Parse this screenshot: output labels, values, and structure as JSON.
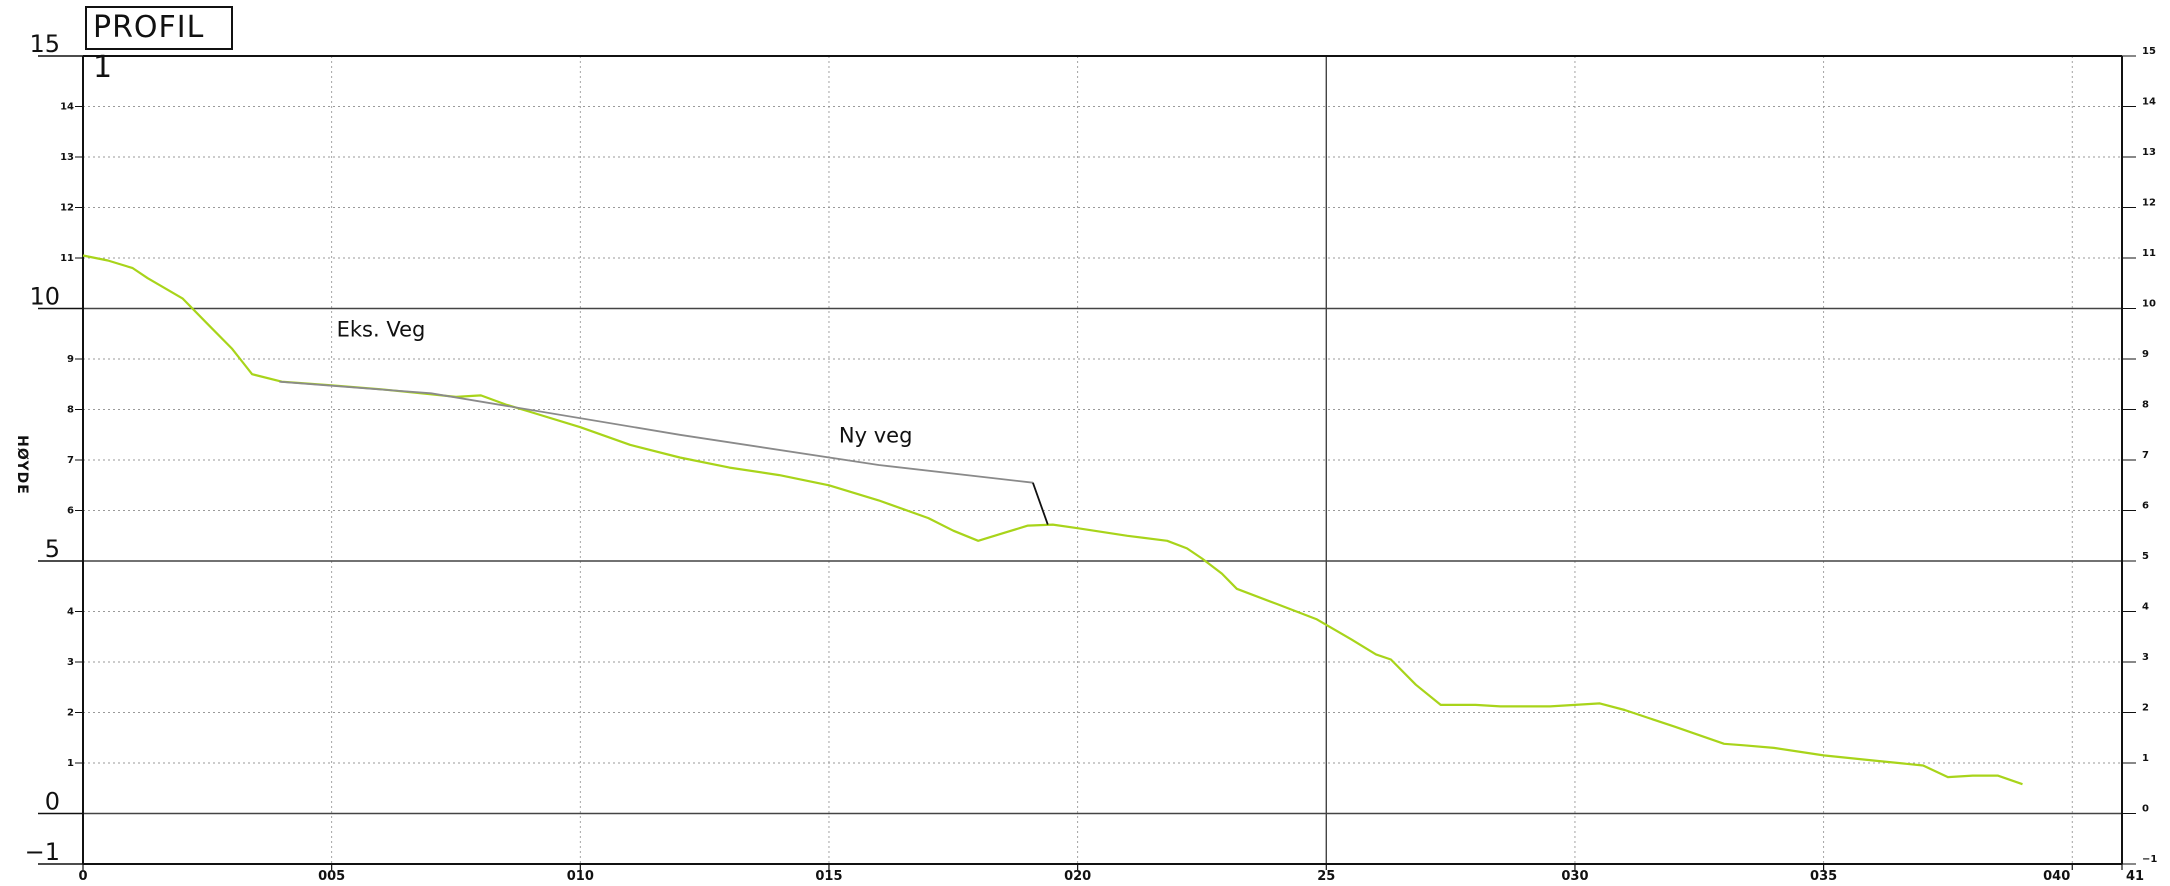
{
  "chart_data": {
    "type": "line",
    "title": "PROFIL 1",
    "ylabel": "HØYDE",
    "xlim": [
      0,
      41
    ],
    "ylim": [
      -1,
      15
    ],
    "x_ticks": [
      {
        "x": 0,
        "label": "0"
      },
      {
        "x": 5,
        "label": "005"
      },
      {
        "x": 10,
        "label": "010"
      },
      {
        "x": 15,
        "label": "015"
      },
      {
        "x": 20,
        "label": "020"
      },
      {
        "x": 25,
        "label": "25"
      },
      {
        "x": 30,
        "label": "030"
      },
      {
        "x": 35,
        "label": "035"
      },
      {
        "x": 40,
        "label": "040"
      },
      {
        "x": 41,
        "label": "41"
      }
    ],
    "y_major_ticks": [
      {
        "y": 15,
        "label": "15"
      },
      {
        "y": 10,
        "label": "10"
      },
      {
        "y": 5,
        "label": "5"
      },
      {
        "y": 0,
        "label": "0"
      },
      {
        "y": -1,
        "label": "−1"
      }
    ],
    "y_minor_ticks_left": [
      {
        "y": 14,
        "label": "14"
      },
      {
        "y": 13,
        "label": "13"
      },
      {
        "y": 12,
        "label": "12"
      },
      {
        "y": 11,
        "label": "11"
      },
      {
        "y": 9,
        "label": "9"
      },
      {
        "y": 8,
        "label": "8"
      },
      {
        "y": 7,
        "label": "7"
      },
      {
        "y": 6,
        "label": "6"
      },
      {
        "y": 4,
        "label": "4"
      },
      {
        "y": 3,
        "label": "3"
      },
      {
        "y": 2,
        "label": "2"
      },
      {
        "y": 1,
        "label": "1"
      }
    ],
    "y_ticks_right": [
      {
        "y": 15,
        "label": "15"
      },
      {
        "y": 14,
        "label": "14"
      },
      {
        "y": 13,
        "label": "13"
      },
      {
        "y": 12,
        "label": "12"
      },
      {
        "y": 11,
        "label": "11"
      },
      {
        "y": 10,
        "label": "10"
      },
      {
        "y": 9,
        "label": "9"
      },
      {
        "y": 8,
        "label": "8"
      },
      {
        "y": 7,
        "label": "7"
      },
      {
        "y": 6,
        "label": "6"
      },
      {
        "y": 5,
        "label": "5"
      },
      {
        "y": 4,
        "label": "4"
      },
      {
        "y": 3,
        "label": "3"
      },
      {
        "y": 2,
        "label": "2"
      },
      {
        "y": 1,
        "label": "1"
      },
      {
        "y": 0,
        "label": "0"
      },
      {
        "y": -1,
        "label": "−1"
      }
    ],
    "grid": true,
    "annotations": [
      {
        "text": "Eks. Veg",
        "x": 5.1,
        "y": 9.45
      },
      {
        "text": "Ny veg",
        "x": 15.2,
        "y": 7.35
      }
    ],
    "series": [
      {
        "color": "#a8d41a",
        "points": [
          [
            0,
            11.05
          ],
          [
            0.5,
            10.95
          ],
          [
            1,
            10.8
          ],
          [
            1.3,
            10.6
          ],
          [
            2,
            10.2
          ],
          [
            2.5,
            9.7
          ],
          [
            3,
            9.2
          ],
          [
            3.2,
            8.95
          ],
          [
            3.4,
            8.7
          ],
          [
            4,
            8.55
          ],
          [
            5,
            8.48
          ],
          [
            6,
            8.4
          ],
          [
            7,
            8.3
          ],
          [
            7.5,
            8.25
          ],
          [
            8,
            8.28
          ],
          [
            8.5,
            8.1
          ],
          [
            9,
            7.95
          ],
          [
            10,
            7.65
          ],
          [
            11,
            7.3
          ],
          [
            12,
            7.05
          ],
          [
            13,
            6.85
          ],
          [
            14,
            6.7
          ],
          [
            15,
            6.5
          ],
          [
            16,
            6.2
          ],
          [
            17,
            5.85
          ],
          [
            17.5,
            5.6
          ],
          [
            18,
            5.4
          ],
          [
            18.5,
            5.55
          ],
          [
            19,
            5.7
          ],
          [
            19.5,
            5.72
          ],
          [
            20,
            5.65
          ],
          [
            21,
            5.5
          ],
          [
            21.8,
            5.4
          ],
          [
            22.2,
            5.25
          ],
          [
            22.5,
            5.05
          ],
          [
            22.9,
            4.75
          ],
          [
            23.2,
            4.45
          ],
          [
            24,
            4.15
          ],
          [
            24.8,
            3.85
          ],
          [
            25.5,
            3.45
          ],
          [
            26,
            3.15
          ],
          [
            26.3,
            3.05
          ],
          [
            26.8,
            2.55
          ],
          [
            27.3,
            2.15
          ],
          [
            28,
            2.15
          ],
          [
            28.5,
            2.12
          ],
          [
            29.5,
            2.12
          ],
          [
            30,
            2.15
          ],
          [
            30.5,
            2.18
          ],
          [
            31,
            2.05
          ],
          [
            32,
            1.72
          ],
          [
            33,
            1.38
          ],
          [
            33.4,
            1.35
          ],
          [
            34,
            1.3
          ],
          [
            35,
            1.15
          ],
          [
            36,
            1.05
          ],
          [
            37,
            0.95
          ],
          [
            37.5,
            0.72
          ],
          [
            38,
            0.75
          ],
          [
            38.5,
            0.75
          ],
          [
            39,
            0.58
          ]
        ]
      },
      {
        "color": "#8a8a8a",
        "points": [
          [
            3.95,
            8.55
          ],
          [
            7,
            8.32
          ],
          [
            12,
            7.5
          ],
          [
            16,
            6.9
          ],
          [
            19.1,
            6.55
          ]
        ]
      },
      {
        "color": "#111111",
        "points": [
          [
            19.1,
            6.55
          ],
          [
            19.4,
            5.72
          ]
        ]
      }
    ]
  }
}
